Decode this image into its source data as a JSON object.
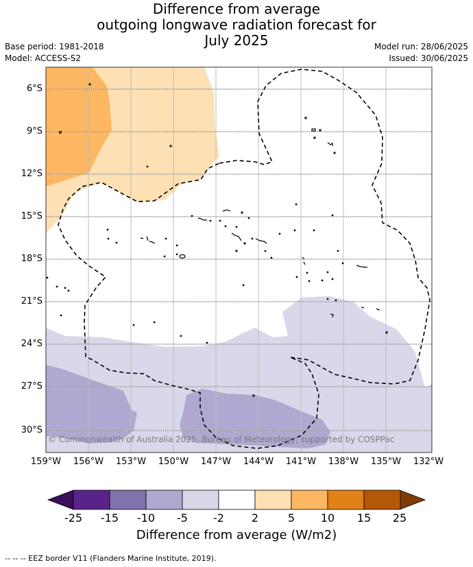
{
  "title_line1": "Difference from average",
  "title_line2": "outgoing longwave radiation forecast for",
  "title_line3": "July 2025",
  "base_period": "Base period: 1981-2018",
  "model": "Model: ACCESS-S2",
  "model_run": "Model run: 28/06/2025",
  "issued": "Issued: 30/06/2025",
  "copyright": "© Commonwealth of Australia 2025, Bureau of Meteorology, supported by COSPPac",
  "lat_labels": [
    "6°S",
    "9°S",
    "12°S",
    "15°S",
    "18°S",
    "21°S",
    "24°S",
    "27°S",
    "30°S"
  ],
  "lon_labels": [
    "159°W",
    "156°W",
    "153°W",
    "150°W",
    "147°W",
    "144°W",
    "141°W",
    "138°W",
    "135°W",
    "132°W"
  ],
  "colorbar": {
    "ticks": [
      "-25",
      "-15",
      "-10",
      "-5",
      "-2",
      "2",
      "5",
      "10",
      "15",
      "25"
    ],
    "colors": [
      "#3b0f5c",
      "#5a2389",
      "#8272ab",
      "#b0a8d0",
      "#d8d8ea",
      "#ffffff",
      "#fde0b3",
      "#fdb762",
      "#e08217",
      "#b35807",
      "#7f3b08"
    ],
    "title": "Difference from average (W/m2)"
  },
  "legend_footer": "-- -- -- EEZ border V11 (Flanders Marine Institute, 2019)."
}
